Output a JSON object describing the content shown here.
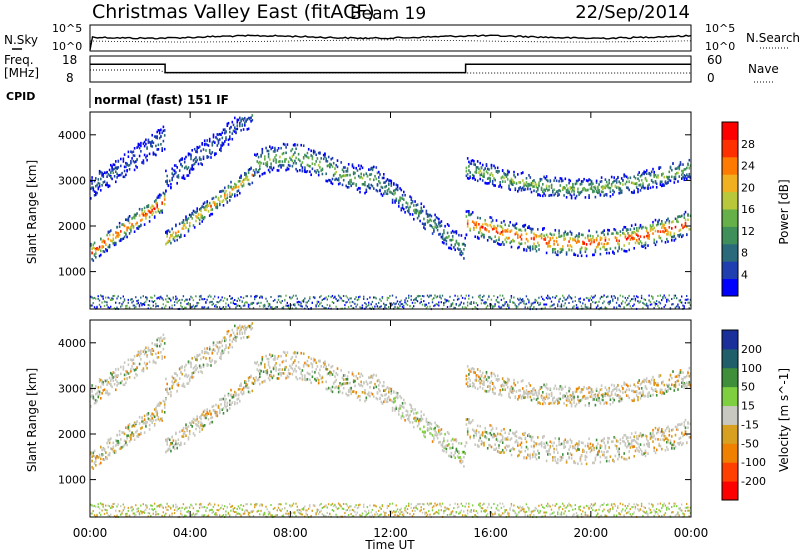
{
  "header": {
    "station": "Christmas Valley East (fitACF)",
    "beam": "Beam 19",
    "date": "22/Sep/2014"
  },
  "top_panels": {
    "nsky_label": "N.Sky",
    "nsky_ticks": [
      "10^5",
      "10^0"
    ],
    "nsearch_label": "N.Search",
    "nsearch_ticks": [
      "10^5",
      "10^0"
    ],
    "freq_label_1": "Freq.",
    "freq_label_2": "[MHz]",
    "freq_ticks": [
      "18",
      "8"
    ],
    "nave_label": "Nave",
    "nave_ticks": [
      "60",
      "0"
    ],
    "cpid_label": "CPID",
    "cpid_value": "normal (fast) 151 IF"
  },
  "colors": {
    "power_scale": [
      "#0000ff",
      "#1f3fb0",
      "#2a6a7a",
      "#3f8f5a",
      "#66b04a",
      "#b8c83a",
      "#f0b020",
      "#ff7a00",
      "#ff3000",
      "#ff0000"
    ],
    "velocity_scale": [
      "#1a2f9a",
      "#1f5f6a",
      "#3f8f3a",
      "#7fd040",
      "#c8c8c0",
      "#d8a020",
      "#f08000",
      "#ff4000",
      "#ff0000"
    ]
  },
  "chart_data": [
    {
      "type": "heatmap",
      "panel": "power",
      "xlabel": "Time UT",
      "ylabel": "Slant Range [km]",
      "x_ticks": [
        "00:00",
        "04:00",
        "08:00",
        "12:00",
        "16:00",
        "20:00",
        "00:00"
      ],
      "xlim_hours": [
        0,
        24
      ],
      "ylim": [
        180,
        4500
      ],
      "y_ticks": [
        1000,
        2000,
        3000,
        4000
      ],
      "colorbar_label": "Power [dB]",
      "colorbar_ticks": [
        4,
        8,
        12,
        16,
        20,
        24,
        28
      ],
      "colorbar_range": [
        0,
        32
      ]
    },
    {
      "type": "heatmap",
      "panel": "velocity",
      "xlabel": "Time UT",
      "ylabel": "Slant Range [km]",
      "x_ticks": [
        "00:00",
        "04:00",
        "08:00",
        "12:00",
        "16:00",
        "20:00",
        "00:00"
      ],
      "xlim_hours": [
        0,
        24
      ],
      "ylim": [
        180,
        4500
      ],
      "y_ticks": [
        1000,
        2000,
        3000,
        4000
      ],
      "colorbar_label": "Velocity [m s^-1]",
      "colorbar_ticks": [
        200,
        100,
        50,
        15,
        -15,
        -50,
        -100,
        -200
      ]
    }
  ],
  "freq_series": {
    "hours": [
      0,
      3,
      3,
      15,
      15,
      24
    ],
    "mhz": [
      17.8,
      17.8,
      10.8,
      10.8,
      17.8,
      17.8
    ]
  }
}
